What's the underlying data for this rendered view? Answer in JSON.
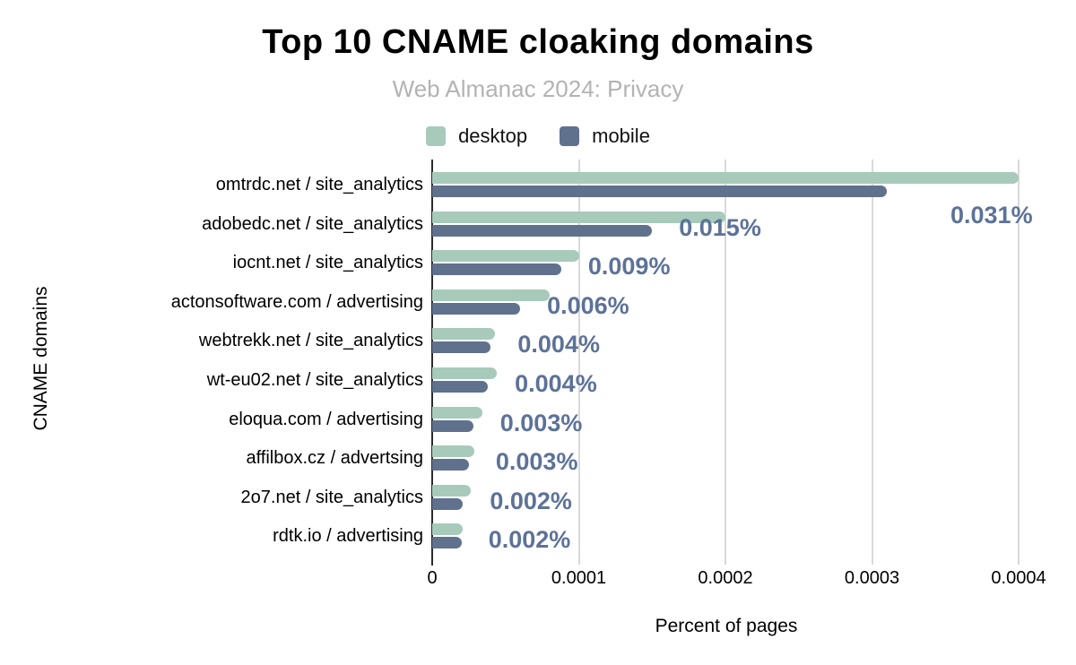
{
  "page": {
    "title": "Top 10 CNAME cloaking domains",
    "subtitle": "Web Almanac 2024: Privacy"
  },
  "legend": {
    "items": [
      {
        "label": "desktop",
        "color": "#a7cabb"
      },
      {
        "label": "mobile",
        "color": "#60718d"
      }
    ]
  },
  "chart_data": {
    "type": "bar",
    "orientation": "horizontal",
    "title": "Top 10 CNAME cloaking domains",
    "subtitle": "Web Almanac 2024: Privacy",
    "xlabel": "Percent of pages",
    "ylabel": "CNAME domains",
    "xlim": [
      0,
      0.0004
    ],
    "xticks": [
      0,
      0.0001,
      0.0002,
      0.0003,
      0.0004
    ],
    "xtick_labels": [
      "0",
      "0.0001",
      "0.0002",
      "0.0003",
      "0.0004"
    ],
    "grid": true,
    "legend_position": "top",
    "categories": [
      "omtrdc.net / site_analytics",
      "adobedc.net / site_analytics",
      "iocnt.net / site_analytics",
      "actonsoftware.com / advertising",
      "webtrekk.net / site_analytics",
      "wt-eu02.net / site_analytics",
      "eloqua.com / advertising",
      "affilbox.cz / advertsing",
      "2o7.net / site_analytics",
      "rdtk.io / advertising"
    ],
    "series": [
      {
        "name": "desktop",
        "color": "#a7cabb",
        "values": [
          0.0004,
          0.0002,
          0.0001,
          8e-05,
          4.3e-05,
          4.4e-05,
          3.4e-05,
          2.9e-05,
          2.6e-05,
          2.1e-05
        ]
      },
      {
        "name": "mobile",
        "color": "#60718d",
        "values": [
          0.00031,
          0.00015,
          8.8e-05,
          6e-05,
          4e-05,
          3.8e-05,
          2.8e-05,
          2.5e-05,
          2.1e-05,
          2e-05
        ]
      }
    ],
    "value_labels": [
      "0.031%",
      "0.015%",
      "0.009%",
      "0.006%",
      "0.004%",
      "0.004%",
      "0.003%",
      "0.003%",
      "0.002%",
      "0.002%"
    ],
    "colors": {
      "grid": "#d9d9d9",
      "axis": "#2b2b2b",
      "value_label": "#5d7298",
      "subtitle": "#b3b3b3"
    }
  }
}
